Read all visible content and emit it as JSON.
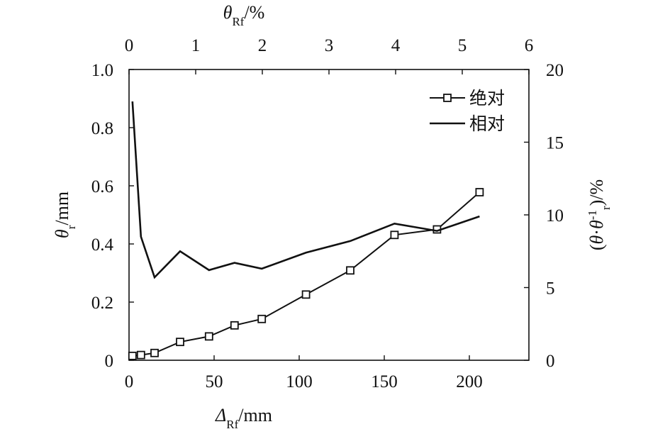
{
  "chart_data": {
    "type": "line",
    "x_bottom": {
      "label_symbol": "Δ",
      "label_sub": "Rf",
      "label_unit": "/mm",
      "range": [
        0,
        235
      ],
      "ticks": [
        0,
        50,
        100,
        150,
        200
      ]
    },
    "x_top": {
      "label_symbol": "θ",
      "label_sub": "Rf",
      "label_unit": "/%",
      "range": [
        0,
        6
      ],
      "ticks": [
        0,
        1,
        2,
        3,
        4,
        5,
        6
      ]
    },
    "y_left": {
      "label_symbol": "θ",
      "label_sub": "r",
      "label_unit": "/mm",
      "range": [
        0,
        1.0
      ],
      "ticks": [
        0,
        0.2,
        0.4,
        0.6,
        0.8,
        1.0
      ],
      "tick_labels": [
        "0",
        "0.2",
        "0.4",
        "0.6",
        "0.8",
        "1.0"
      ]
    },
    "y_right": {
      "label_text": "(θ·θ",
      "label_sub": "r",
      "label_sup": "-1",
      "label_unit": ")/%",
      "range": [
        0,
        20
      ],
      "ticks": [
        0,
        5,
        10,
        15,
        20
      ]
    },
    "series": [
      {
        "name": "绝对",
        "axis": "left",
        "marker": "square",
        "x": [
          2,
          7,
          15,
          30,
          47,
          62,
          78,
          104,
          130,
          156,
          181,
          206
        ],
        "values": [
          0.015,
          0.018,
          0.025,
          0.063,
          0.082,
          0.12,
          0.142,
          0.226,
          0.309,
          0.431,
          0.45,
          0.578
        ]
      },
      {
        "name": "相对",
        "axis": "right",
        "marker": "none",
        "x": [
          2,
          7,
          15,
          30,
          47,
          62,
          78,
          104,
          130,
          156,
          181,
          206
        ],
        "values": [
          17.8,
          8.5,
          5.7,
          7.5,
          6.2,
          6.7,
          6.3,
          7.4,
          8.2,
          9.4,
          8.9,
          9.9
        ]
      }
    ],
    "legend": {
      "position": "top-right"
    },
    "grid": false
  }
}
